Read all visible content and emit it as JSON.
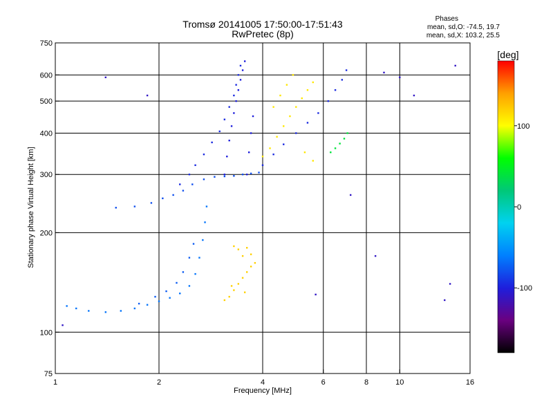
{
  "chart_data": {
    "type": "scatter",
    "title": "Tromsø 20141005 17:50:00-17:51:43",
    "subtitle": "RwPretec (8p)",
    "xlabel": "Frequency [MHz]",
    "ylabel": "Stationary phase Virtual Height [km]",
    "x_scale": "log",
    "y_scale": "log",
    "xlim": [
      1,
      16
    ],
    "ylim": [
      75,
      750
    ],
    "grid": true,
    "x_ticks": [
      {
        "value": 1,
        "label": "1"
      },
      {
        "value": 2,
        "label": "2"
      },
      {
        "value": 4,
        "label": "4"
      },
      {
        "value": 6,
        "label": "6"
      },
      {
        "value": 8,
        "label": "8"
      },
      {
        "value": 10,
        "label": "10"
      },
      {
        "value": 16,
        "label": "16"
      }
    ],
    "x_gridlines": [
      2,
      4,
      6,
      8,
      10
    ],
    "y_ticks": [
      {
        "value": 75,
        "label": "75"
      },
      {
        "value": 100,
        "label": "100"
      },
      {
        "value": 200,
        "label": "200"
      },
      {
        "value": 300,
        "label": "300"
      },
      {
        "value": 400,
        "label": "400"
      },
      {
        "value": 500,
        "label": "500"
      },
      {
        "value": 600,
        "label": "600"
      },
      {
        "value": 750,
        "label": "750"
      }
    ],
    "y_gridlines": [
      100,
      200,
      300,
      400,
      500,
      600
    ],
    "stats": {
      "header": "Phases",
      "line_o": "mean, sd,O: -74.5, 19.7",
      "line_x": "mean, sd,X: 103.2, 25.5"
    },
    "colorbar": {
      "label": "[deg]",
      "range": [
        -180,
        180
      ],
      "ticks": [
        {
          "value": 100,
          "label": "100"
        },
        {
          "value": 0,
          "label": "0"
        },
        {
          "value": -100,
          "label": "-100"
        }
      ],
      "stops": [
        "#000000",
        "#6a0080",
        "#1e1edc",
        "#0080ff",
        "#00d2f0",
        "#00c878",
        "#00ff00",
        "#ffff00",
        "#ffa000",
        "#ff0000"
      ]
    },
    "series": [
      {
        "role": "low-E-trace blue-cyan",
        "phase": -65,
        "points": [
          [
            1.08,
            120
          ],
          [
            1.15,
            118
          ],
          [
            1.25,
            116
          ],
          [
            1.4,
            115
          ],
          [
            1.55,
            116
          ],
          [
            1.7,
            118
          ],
          [
            1.85,
            121
          ],
          [
            2.0,
            124
          ],
          [
            2.15,
            127
          ],
          [
            2.3,
            131
          ],
          [
            2.45,
            138
          ],
          [
            2.55,
            150
          ],
          [
            2.62,
            168
          ],
          [
            2.68,
            190
          ],
          [
            2.72,
            215
          ],
          [
            2.75,
            240
          ]
        ]
      },
      {
        "role": "low-E-trace upper",
        "phase": -75,
        "points": [
          [
            1.75,
            122
          ],
          [
            1.95,
            128
          ],
          [
            2.1,
            133
          ],
          [
            2.25,
            141
          ],
          [
            2.35,
            152
          ],
          [
            2.45,
            168
          ],
          [
            2.52,
            185
          ]
        ]
      },
      {
        "role": "orange X cloud",
        "phase": 120,
        "points": [
          [
            3.1,
            125
          ],
          [
            3.2,
            128
          ],
          [
            3.3,
            134
          ],
          [
            3.4,
            140
          ],
          [
            3.5,
            146
          ],
          [
            3.6,
            152
          ],
          [
            3.7,
            158
          ],
          [
            3.8,
            162
          ],
          [
            3.5,
            170
          ],
          [
            3.4,
            178
          ],
          [
            3.3,
            182
          ],
          [
            3.6,
            180
          ],
          [
            3.7,
            172
          ],
          [
            3.25,
            138
          ],
          [
            3.55,
            132
          ]
        ]
      },
      {
        "role": "F-trace lower",
        "phase": -80,
        "points": [
          [
            1.5,
            238
          ],
          [
            1.7,
            240
          ],
          [
            1.9,
            246
          ],
          [
            2.05,
            254
          ],
          [
            2.2,
            260
          ],
          [
            2.35,
            268
          ],
          [
            2.5,
            280
          ],
          [
            2.7,
            290
          ],
          [
            2.9,
            295
          ],
          [
            3.1,
            296
          ],
          [
            3.3,
            297
          ],
          [
            3.5,
            300
          ],
          [
            3.7,
            302
          ],
          [
            3.9,
            304
          ]
        ]
      },
      {
        "role": "F-trace upper blue",
        "phase": -95,
        "points": [
          [
            2.3,
            280
          ],
          [
            2.45,
            300
          ],
          [
            2.55,
            320
          ],
          [
            2.7,
            345
          ],
          [
            2.85,
            375
          ],
          [
            3.0,
            405
          ],
          [
            3.1,
            440
          ],
          [
            3.2,
            480
          ],
          [
            3.3,
            520
          ],
          [
            3.35,
            560
          ],
          [
            3.4,
            600
          ],
          [
            3.45,
            640
          ]
        ]
      },
      {
        "role": "F-trace dense column",
        "phase": -100,
        "points": [
          [
            3.1,
            300
          ],
          [
            3.15,
            340
          ],
          [
            3.2,
            380
          ],
          [
            3.25,
            420
          ],
          [
            3.3,
            460
          ],
          [
            3.35,
            500
          ],
          [
            3.4,
            540
          ],
          [
            3.45,
            580
          ],
          [
            3.5,
            620
          ],
          [
            3.55,
            660
          ],
          [
            3.6,
            300
          ],
          [
            3.65,
            350
          ],
          [
            3.7,
            400
          ],
          [
            3.75,
            450
          ]
        ]
      },
      {
        "role": "X-mode yellow-orange",
        "phase": 110,
        "points": [
          [
            4.0,
            340
          ],
          [
            4.2,
            360
          ],
          [
            4.4,
            390
          ],
          [
            4.6,
            420
          ],
          [
            4.8,
            450
          ],
          [
            5.0,
            480
          ],
          [
            5.2,
            510
          ],
          [
            5.4,
            540
          ],
          [
            5.6,
            570
          ],
          [
            4.3,
            480
          ],
          [
            4.5,
            520
          ],
          [
            4.7,
            560
          ],
          [
            4.9,
            600
          ],
          [
            5.3,
            350
          ],
          [
            5.6,
            330
          ]
        ]
      },
      {
        "role": "blue streak 5-7 MHz",
        "phase": -95,
        "points": [
          [
            4.0,
            320
          ],
          [
            4.3,
            345
          ],
          [
            4.6,
            370
          ],
          [
            5.0,
            400
          ],
          [
            5.4,
            430
          ],
          [
            5.8,
            460
          ],
          [
            6.2,
            500
          ],
          [
            6.5,
            540
          ],
          [
            6.8,
            580
          ],
          [
            7.0,
            620
          ]
        ]
      },
      {
        "role": "green arc",
        "phase": 40,
        "points": [
          [
            6.3,
            350
          ],
          [
            6.5,
            360
          ],
          [
            6.7,
            372
          ],
          [
            6.9,
            385
          ],
          [
            7.05,
            400
          ]
        ]
      },
      {
        "role": "scattered isolated points",
        "phase": -110,
        "points": [
          [
            1.05,
            105
          ],
          [
            1.4,
            590
          ],
          [
            1.85,
            520
          ],
          [
            5.7,
            130
          ],
          [
            7.2,
            260
          ],
          [
            10.0,
            590
          ],
          [
            11.0,
            520
          ],
          [
            13.5,
            125
          ],
          [
            14.0,
            140
          ],
          [
            14.5,
            640
          ],
          [
            9.0,
            610
          ],
          [
            8.5,
            170
          ]
        ]
      }
    ]
  }
}
